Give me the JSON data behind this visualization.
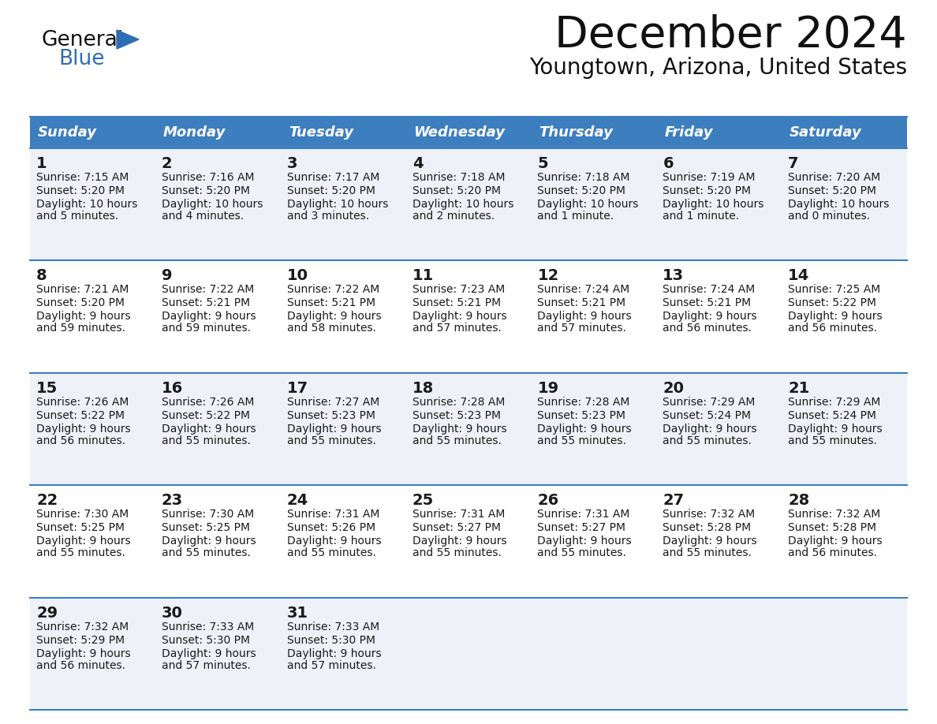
{
  "title": "December 2024",
  "subtitle": "Youngtown, Arizona, United States",
  "header_color": "#3d7ebf",
  "header_text_color": "#ffffff",
  "cell_bg_odd": "#eef2f8",
  "cell_bg_even": "#ffffff",
  "border_color": "#3d7ebf",
  "text_color": "#1a1a1a",
  "days_of_week": [
    "Sunday",
    "Monday",
    "Tuesday",
    "Wednesday",
    "Thursday",
    "Friday",
    "Saturday"
  ],
  "weeks": [
    [
      {
        "day": 1,
        "sunrise": "7:15 AM",
        "sunset": "5:20 PM",
        "daylight": "10 hours and 5 minutes."
      },
      {
        "day": 2,
        "sunrise": "7:16 AM",
        "sunset": "5:20 PM",
        "daylight": "10 hours and 4 minutes."
      },
      {
        "day": 3,
        "sunrise": "7:17 AM",
        "sunset": "5:20 PM",
        "daylight": "10 hours and 3 minutes."
      },
      {
        "day": 4,
        "sunrise": "7:18 AM",
        "sunset": "5:20 PM",
        "daylight": "10 hours and 2 minutes."
      },
      {
        "day": 5,
        "sunrise": "7:18 AM",
        "sunset": "5:20 PM",
        "daylight": "10 hours and 1 minute."
      },
      {
        "day": 6,
        "sunrise": "7:19 AM",
        "sunset": "5:20 PM",
        "daylight": "10 hours and 1 minute."
      },
      {
        "day": 7,
        "sunrise": "7:20 AM",
        "sunset": "5:20 PM",
        "daylight": "10 hours and 0 minutes."
      }
    ],
    [
      {
        "day": 8,
        "sunrise": "7:21 AM",
        "sunset": "5:20 PM",
        "daylight": "9 hours and 59 minutes."
      },
      {
        "day": 9,
        "sunrise": "7:22 AM",
        "sunset": "5:21 PM",
        "daylight": "9 hours and 59 minutes."
      },
      {
        "day": 10,
        "sunrise": "7:22 AM",
        "sunset": "5:21 PM",
        "daylight": "9 hours and 58 minutes."
      },
      {
        "day": 11,
        "sunrise": "7:23 AM",
        "sunset": "5:21 PM",
        "daylight": "9 hours and 57 minutes."
      },
      {
        "day": 12,
        "sunrise": "7:24 AM",
        "sunset": "5:21 PM",
        "daylight": "9 hours and 57 minutes."
      },
      {
        "day": 13,
        "sunrise": "7:24 AM",
        "sunset": "5:21 PM",
        "daylight": "9 hours and 56 minutes."
      },
      {
        "day": 14,
        "sunrise": "7:25 AM",
        "sunset": "5:22 PM",
        "daylight": "9 hours and 56 minutes."
      }
    ],
    [
      {
        "day": 15,
        "sunrise": "7:26 AM",
        "sunset": "5:22 PM",
        "daylight": "9 hours and 56 minutes."
      },
      {
        "day": 16,
        "sunrise": "7:26 AM",
        "sunset": "5:22 PM",
        "daylight": "9 hours and 55 minutes."
      },
      {
        "day": 17,
        "sunrise": "7:27 AM",
        "sunset": "5:23 PM",
        "daylight": "9 hours and 55 minutes."
      },
      {
        "day": 18,
        "sunrise": "7:28 AM",
        "sunset": "5:23 PM",
        "daylight": "9 hours and 55 minutes."
      },
      {
        "day": 19,
        "sunrise": "7:28 AM",
        "sunset": "5:23 PM",
        "daylight": "9 hours and 55 minutes."
      },
      {
        "day": 20,
        "sunrise": "7:29 AM",
        "sunset": "5:24 PM",
        "daylight": "9 hours and 55 minutes."
      },
      {
        "day": 21,
        "sunrise": "7:29 AM",
        "sunset": "5:24 PM",
        "daylight": "9 hours and 55 minutes."
      }
    ],
    [
      {
        "day": 22,
        "sunrise": "7:30 AM",
        "sunset": "5:25 PM",
        "daylight": "9 hours and 55 minutes."
      },
      {
        "day": 23,
        "sunrise": "7:30 AM",
        "sunset": "5:25 PM",
        "daylight": "9 hours and 55 minutes."
      },
      {
        "day": 24,
        "sunrise": "7:31 AM",
        "sunset": "5:26 PM",
        "daylight": "9 hours and 55 minutes."
      },
      {
        "day": 25,
        "sunrise": "7:31 AM",
        "sunset": "5:27 PM",
        "daylight": "9 hours and 55 minutes."
      },
      {
        "day": 26,
        "sunrise": "7:31 AM",
        "sunset": "5:27 PM",
        "daylight": "9 hours and 55 minutes."
      },
      {
        "day": 27,
        "sunrise": "7:32 AM",
        "sunset": "5:28 PM",
        "daylight": "9 hours and 55 minutes."
      },
      {
        "day": 28,
        "sunrise": "7:32 AM",
        "sunset": "5:28 PM",
        "daylight": "9 hours and 56 minutes."
      }
    ],
    [
      {
        "day": 29,
        "sunrise": "7:32 AM",
        "sunset": "5:29 PM",
        "daylight": "9 hours and 56 minutes."
      },
      {
        "day": 30,
        "sunrise": "7:33 AM",
        "sunset": "5:30 PM",
        "daylight": "9 hours and 57 minutes."
      },
      {
        "day": 31,
        "sunrise": "7:33 AM",
        "sunset": "5:30 PM",
        "daylight": "9 hours and 57 minutes."
      },
      null,
      null,
      null,
      null
    ]
  ],
  "logo_triangle_color": "#2e6db4",
  "title_fontsize": 40,
  "subtitle_fontsize": 20,
  "header_fontsize": 13,
  "day_num_fontsize": 14,
  "cell_fontsize": 10
}
